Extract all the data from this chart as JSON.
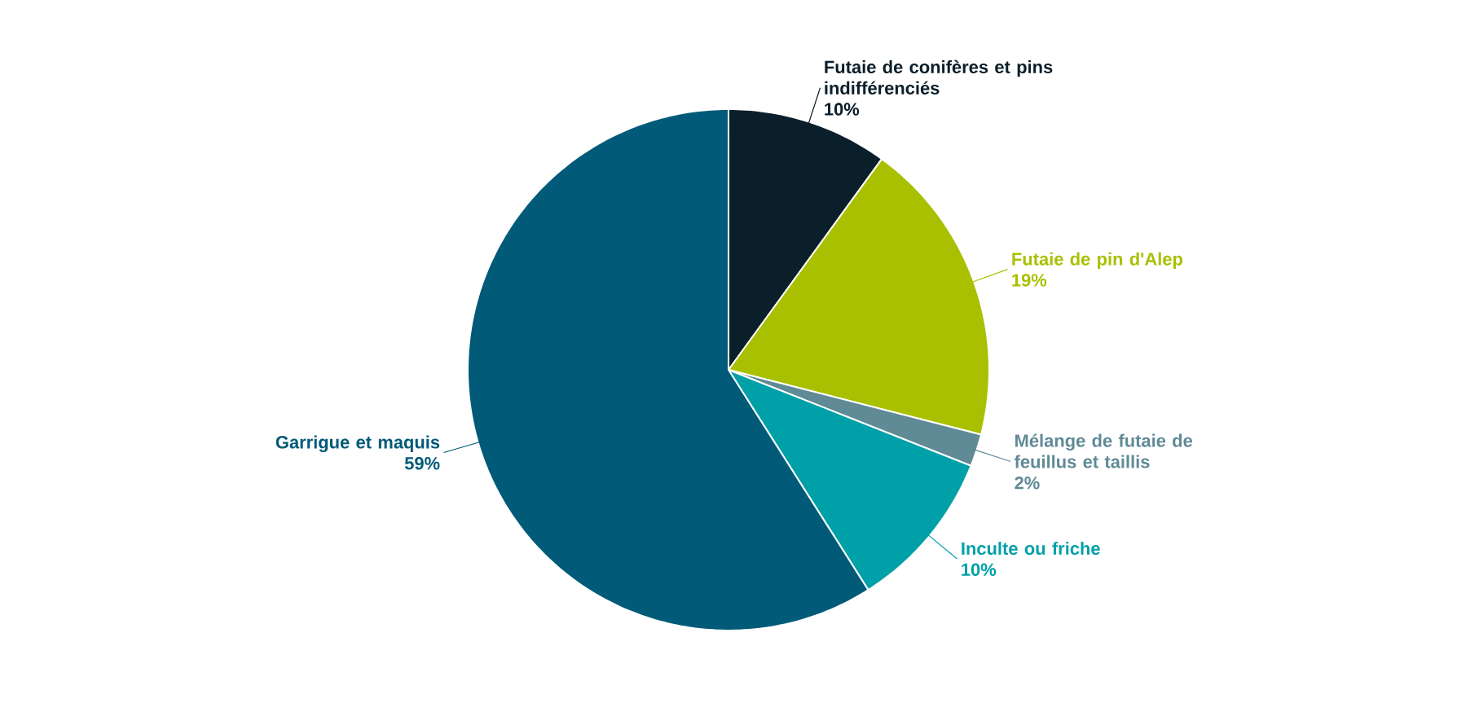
{
  "chart_data": {
    "type": "pie",
    "categories": [
      "Futaie de conifères et pins indifférenciés",
      "Futaie de pin d'Alep",
      "Mélange de futaie de feuillus et taillis",
      "Inculte ou friche",
      "Garrigue et maquis"
    ],
    "values": [
      10,
      19,
      2,
      10,
      59
    ],
    "value_labels": [
      "10%",
      "19%",
      "2%",
      "10%",
      "59%"
    ],
    "colors": [
      "#0b1f2a",
      "#a9c000",
      "#5f8a96",
      "#00a0a8",
      "#005a78"
    ]
  }
}
